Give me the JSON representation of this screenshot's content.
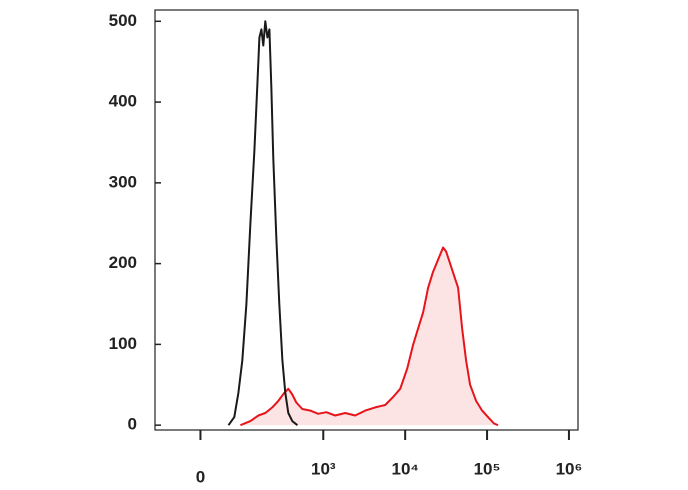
{
  "chart_data": {
    "type": "histogram-overlay",
    "xscale": "biexponential",
    "xlim": [
      -370,
      1290000
    ],
    "xticks": [
      0,
      {
        "value": 1000,
        "label": "10³"
      },
      {
        "value": 10000,
        "label": "10⁴"
      },
      {
        "value": 100000,
        "label": "10⁵"
      },
      {
        "value": 1000000,
        "label": "10⁶"
      }
    ],
    "ylim": [
      -6,
      514
    ],
    "yticks": [
      0,
      100,
      200,
      300,
      400,
      500
    ],
    "series": [
      {
        "color": "#e8141c",
        "fill": "#fde4e4",
        "x": [
          325,
          407,
          472,
          528,
          585,
          634,
          683,
          715,
          748,
          780,
          829,
          894,
          959,
          1088,
          1400,
          1854,
          2455,
          3252,
          4307,
          5702,
          7140,
          8690,
          10580,
          12520,
          14410,
          16590,
          19070,
          21940,
          25250,
          29050,
          31620,
          35390,
          39630,
          44280,
          49560,
          55460,
          62060,
          73450,
          86900,
          102800,
          121600,
          136100
        ],
        "values": [
          0,
          5,
          12,
          15,
          22,
          30,
          40,
          45,
          38,
          28,
          20,
          18,
          14,
          16,
          12,
          15,
          12,
          18,
          22,
          25,
          35,
          45,
          70,
          100,
          120,
          140,
          170,
          190,
          205,
          220,
          215,
          200,
          185,
          170,
          120,
          80,
          50,
          30,
          18,
          10,
          2,
          0
        ]
      },
      {
        "color": "#1a1a1a",
        "x": [
          228,
          276,
          309,
          341,
          374,
          407,
          439,
          463,
          480,
          496,
          512,
          528,
          545,
          561,
          577,
          593,
          618,
          642,
          667,
          691,
          715,
          748,
          789
        ],
        "values": [
          0,
          10,
          40,
          80,
          150,
          250,
          340,
          420,
          480,
          490,
          470,
          500,
          480,
          490,
          420,
          330,
          230,
          150,
          80,
          40,
          15,
          5,
          0
        ]
      }
    ]
  }
}
